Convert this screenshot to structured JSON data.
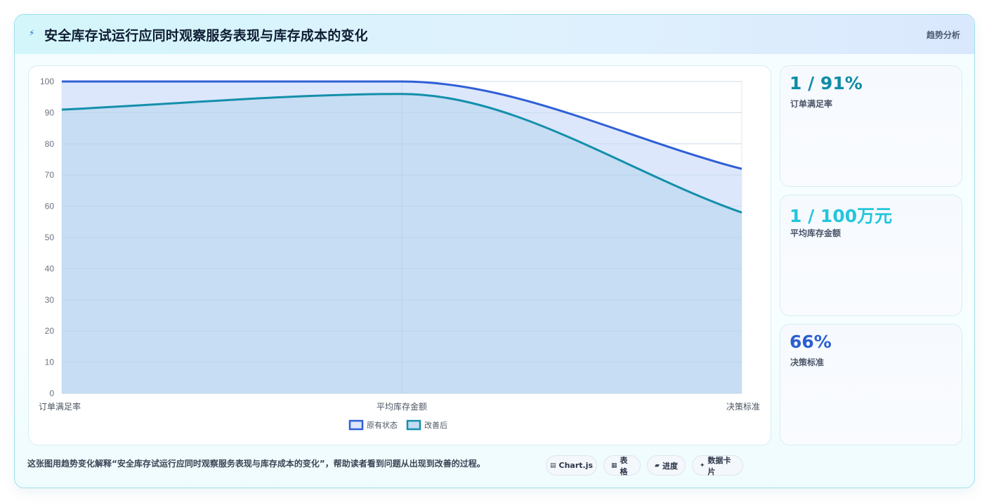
{
  "header": {
    "icon": "bolt-icon",
    "title": "安全库存试运行应同时观察服务表现与库存成本的变化",
    "tag": "趋势分析"
  },
  "chart_data": {
    "type": "area",
    "categories": [
      "订单满足率",
      "平均库存金额",
      "决策标准"
    ],
    "ylim": [
      0,
      100
    ],
    "yticks": [
      "0",
      "10",
      "20",
      "30",
      "40",
      "50",
      "60",
      "70",
      "80",
      "90",
      "100"
    ],
    "series": [
      {
        "name": "原有状态",
        "values": [
          100,
          100,
          72
        ],
        "color": "#2f5fd6",
        "fill": "#dce7fb"
      },
      {
        "name": "改善后",
        "values": [
          91,
          96,
          58
        ],
        "color": "#148fab",
        "fill": "#c4dcf2"
      }
    ],
    "legend": "bottom-center",
    "grid": true
  },
  "kpis": [
    {
      "value": "1 / 91%",
      "label": "订单满足率",
      "color": "#0e8ca6"
    },
    {
      "value": "1 / 100万元",
      "label": "平均库存金额",
      "color": "#23c6dc"
    },
    {
      "value": "66%",
      "label": "决策标准",
      "color": "#2a5fd1"
    }
  ],
  "caption": "这张图用趋势变化解释“安全库存试运行应同时观察服务表现与库存成本的变化”，帮助读者看到问题从出现到改善的过程。",
  "pills": [
    {
      "icon": "chart-icon",
      "glyph": "▤",
      "label": "Chart.js"
    },
    {
      "icon": "table-icon",
      "glyph": "▦",
      "label": "表格"
    },
    {
      "icon": "progress-icon",
      "glyph": "▰",
      "label": "进度"
    },
    {
      "icon": "sparkle-icon",
      "glyph": "✦",
      "label": "数据卡片"
    }
  ]
}
